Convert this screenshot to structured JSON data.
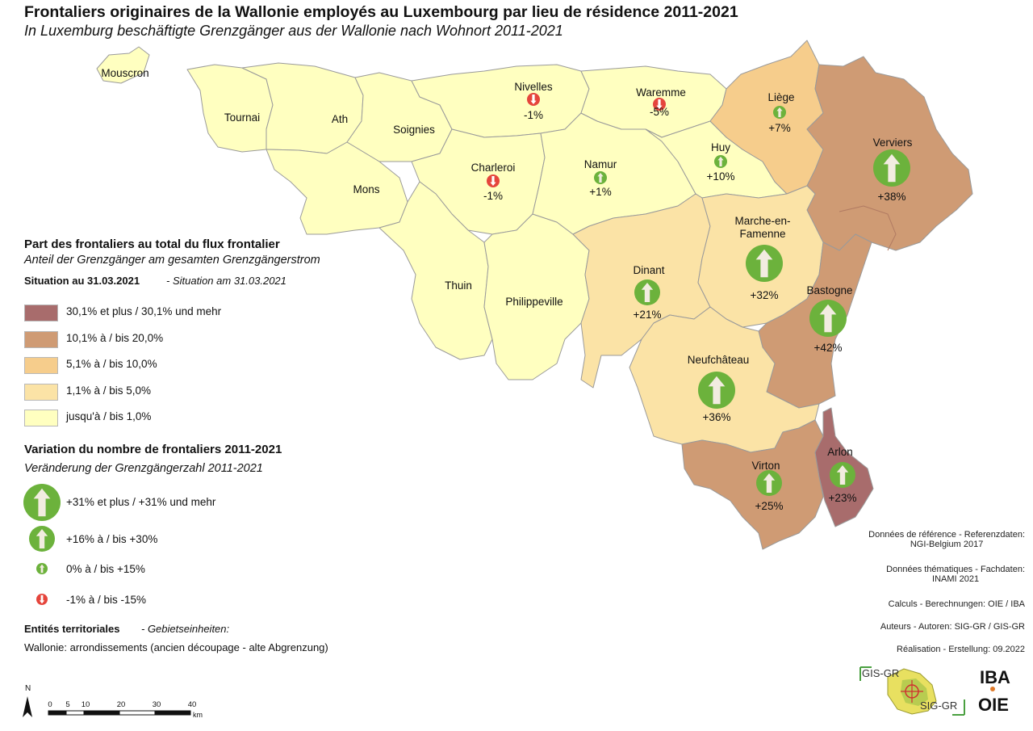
{
  "title": "Frontaliers originaires de la Wallonie employés au Luxembourg par lieu de résidence 2011-2021",
  "subtitle": "In Luxemburg beschäftigte Grenzgänger aus der Wallonie nach Wohnort 2011-2021",
  "colors": {
    "class1": "#ffffc0",
    "class2": "#fbe3a6",
    "class3": "#f6cd8c",
    "class4": "#cf9b74",
    "class5": "#a86c6c",
    "arrow_green": "#6cb23c",
    "arrow_red": "#e5453c",
    "border": "#999999"
  },
  "legend_share": {
    "heading": "Part des frontaliers au total du flux frontalier",
    "heading_de": "Anteil der Grenzgänger am gesamten Grenzgängerstrom",
    "situation": "Situation au 31.03.2021",
    "situation_de": "- Situation am 31.03.2021",
    "classes": [
      {
        "label": "30,1% et plus / 30,1% und mehr",
        "color": "#a86c6c"
      },
      {
        "label": "10,1% à / bis 20,0%",
        "color": "#cf9b74"
      },
      {
        "label": "5,1% à / bis 10,0%",
        "color": "#f6cd8c"
      },
      {
        "label": "1,1% à / bis 5,0%",
        "color": "#fbe3a6"
      },
      {
        "label": "jusqu'à / bis 1,0%",
        "color": "#ffffc0"
      }
    ]
  },
  "legend_variation": {
    "heading": "Variation du nombre de frontaliers 2011-2021",
    "heading_de": "Veränderung der Grenzgängerzahl 2011-2021",
    "items": [
      {
        "label": "+31% et plus / +31% und mehr",
        "icon": "large-up-arrow-icon"
      },
      {
        "label": "+16% à / bis +30%",
        "icon": "medium-up-arrow-icon"
      },
      {
        "label": "0% à / bis +15%",
        "icon": "small-up-arrow-icon"
      },
      {
        "label": "-1% à / bis -15%",
        "icon": "small-down-arrow-icon"
      }
    ]
  },
  "entities": {
    "heading": "Entités territoriales",
    "heading_de": "- Gebietseinheiten:",
    "text": "Wallonie: arrondissements (ancien découpage - alte Abgrenzung)"
  },
  "places": [
    {
      "name": "Mouscron"
    },
    {
      "name": "Tournai"
    },
    {
      "name": "Ath"
    },
    {
      "name": "Soignies"
    },
    {
      "name": "Mons"
    },
    {
      "name": "Thuin"
    },
    {
      "name": "Philippeville"
    },
    {
      "name": "Nivelles",
      "change": "-1%"
    },
    {
      "name": "Charleroi",
      "change": "-1%"
    },
    {
      "name": "Namur",
      "change": "+1%"
    },
    {
      "name": "Waremme",
      "change": "-5%"
    },
    {
      "name": "Huy",
      "change": "+10%"
    },
    {
      "name": "Liège",
      "change": "+7%"
    },
    {
      "name": "Verviers",
      "change": "+38%"
    },
    {
      "name": "Marche-en-Famenne",
      "change": "+32%"
    },
    {
      "name": "Dinant",
      "change": "+21%"
    },
    {
      "name": "Bastogne",
      "change": "+42%"
    },
    {
      "name": "Neufchâteau",
      "change": "+36%"
    },
    {
      "name": "Virton",
      "change": "+25%"
    },
    {
      "name": "Arlon",
      "change": "+23%"
    }
  ],
  "sources": [
    {
      "line1": "Données de référence - Referenzdaten:",
      "line2": "NGI-Belgium 2017"
    },
    {
      "line1": "Données thématiques - Fachdaten:",
      "line2": "INAMI 2021"
    },
    {
      "line1": "Calculs - Berechnungen: OIE / IBA",
      "line2": ""
    },
    {
      "line1": "Auteurs - Autoren: SIG-GR / GIS-GR",
      "line2": ""
    },
    {
      "line1": "Réalisation - Erstellung: 09.2022",
      "line2": ""
    }
  ],
  "scale": {
    "north": "N",
    "ticks": [
      "0",
      "5",
      "10",
      "20",
      "30",
      "40"
    ],
    "unit": "km"
  },
  "logos": {
    "gis": "GIS-GR",
    "sig": "SIG-GR",
    "iba": "IBA",
    "oie": "OIE"
  }
}
